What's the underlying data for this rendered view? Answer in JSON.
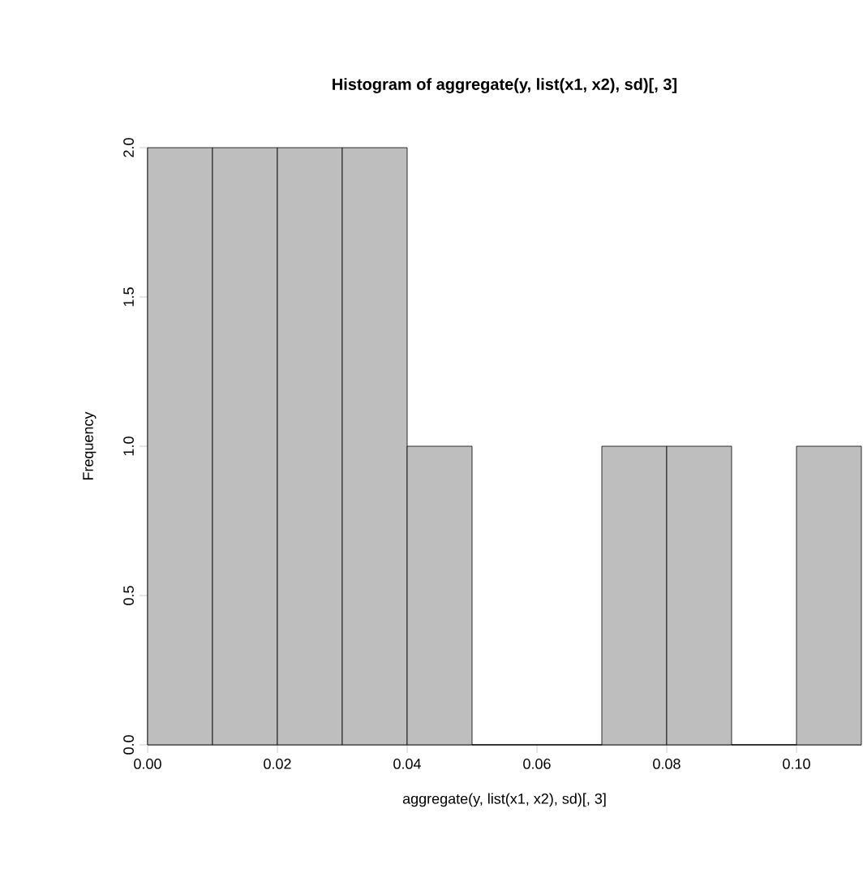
{
  "chart_data": {
    "type": "histogram",
    "title": "Histogram of aggregate(y, list(x1, x2), sd)[, 3]",
    "xlabel": "aggregate(y, list(x1, x2), sd)[, 3]",
    "ylabel": "Frequency",
    "bins": [
      0,
      0.01,
      0.02,
      0.03,
      0.04,
      0.05,
      0.06,
      0.07,
      0.08,
      0.09,
      0.1,
      0.11
    ],
    "values": [
      2,
      2,
      2,
      2,
      1,
      0,
      0,
      1,
      1,
      0,
      1
    ],
    "color": "#bebebe",
    "xlim": [
      0,
      0.11
    ],
    "ylim": [
      0,
      2
    ],
    "xticks": [
      {
        "value": 0,
        "label": "0.00"
      },
      {
        "value": 0.02,
        "label": "0.02"
      },
      {
        "value": 0.04,
        "label": "0.04"
      },
      {
        "value": 0.06,
        "label": "0.06"
      },
      {
        "value": 0.08,
        "label": "0.08"
      },
      {
        "value": 0.1,
        "label": "0.10"
      }
    ],
    "yticks": [
      {
        "value": 0,
        "label": "0.0"
      },
      {
        "value": 0.5,
        "label": "0.5"
      },
      {
        "value": 1,
        "label": "1.0"
      },
      {
        "value": 1.5,
        "label": "1.5"
      },
      {
        "value": 2,
        "label": "2.0"
      }
    ]
  }
}
